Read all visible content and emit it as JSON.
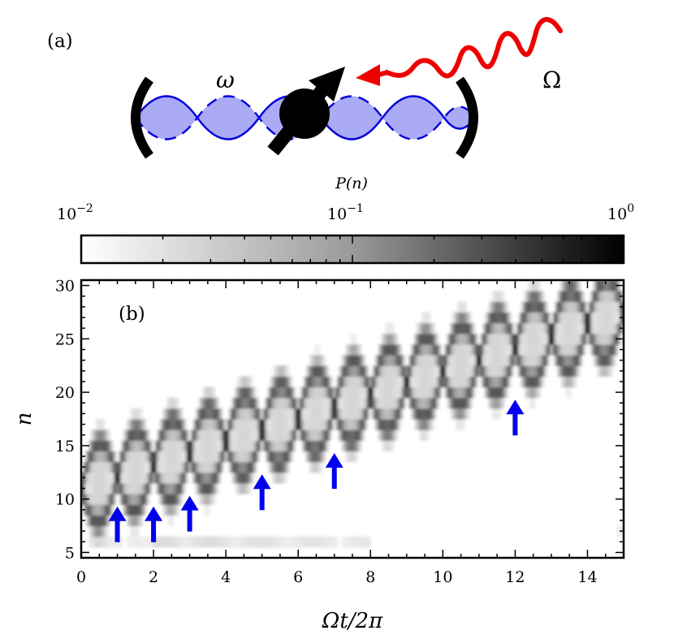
{
  "panel_a": {
    "label": "(a)",
    "cavity_frequency_symbol": "ω",
    "drive_frequency_symbol": "Ω",
    "colors": {
      "mode_fill": "#aaaaf5",
      "mode_line": "#0000dd",
      "drive": "#ee0000",
      "ion": "#000000"
    }
  },
  "colorbar": {
    "title": "P(n)",
    "scale": "log",
    "min": 0.01,
    "max": 1,
    "tick_labels": [
      {
        "value": 0.01,
        "base": "10",
        "exp": "−2"
      },
      {
        "value": 0.1,
        "base": "10",
        "exp": "−1"
      },
      {
        "value": 1,
        "base": "10",
        "exp": "0"
      }
    ]
  },
  "chart_data": {
    "type": "heatmap",
    "panel_label": "(b)",
    "xlabel": "Ωt/2π",
    "ylabel": "n",
    "xlim": [
      0,
      15
    ],
    "ylim": [
      4.5,
      30.5
    ],
    "xticks": [
      0,
      2,
      4,
      6,
      8,
      10,
      12,
      14
    ],
    "yticks": [
      5,
      10,
      15,
      20,
      25,
      30
    ],
    "colormap": "gray_r",
    "description_of_values": "P(n) vs time: a band starting near n≈11 at t=0 and rising to n≈27 at t=15, oscillating with period ~1 in Ωt/2π, with narrow focal points (dark spots) at integer times; faint secondary band near n≈6.",
    "band_centre": {
      "t": [
        0,
        15
      ],
      "n": [
        11,
        27.5
      ]
    },
    "focal_points": [
      {
        "t": 1,
        "n": 12.5
      },
      {
        "t": 2,
        "n": 12.5
      },
      {
        "t": 3,
        "n": 13.5
      },
      {
        "t": 4,
        "n": 14.5
      },
      {
        "t": 5,
        "n": 15.5
      },
      {
        "t": 6,
        "n": 16.5
      },
      {
        "t": 7,
        "n": 17.5
      },
      {
        "t": 8,
        "n": 18.5
      },
      {
        "t": 9,
        "n": 19.5
      },
      {
        "t": 10,
        "n": 20.5
      },
      {
        "t": 11,
        "n": 21.5
      },
      {
        "t": 12,
        "n": 22.5
      },
      {
        "t": 13,
        "n": 24.5
      },
      {
        "t": 14,
        "n": 25
      }
    ],
    "arrows_at_t": [
      1,
      2,
      3,
      5,
      7,
      12
    ],
    "arrow_color": "#0000ee"
  }
}
